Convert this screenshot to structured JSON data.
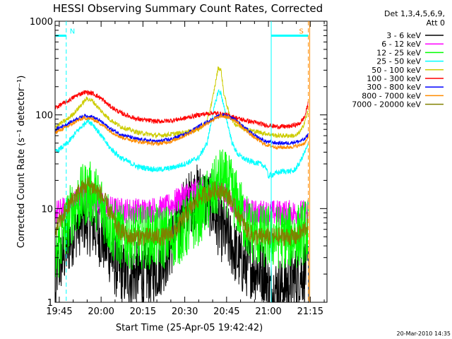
{
  "chart_data": {
    "type": "line",
    "title": "HESSI Observing Summary Count Rates, Corrected",
    "xlabel": "Start Time (25-Apr-05 19:42:42)",
    "ylabel": "Corrected Count Rate (s⁻¹ detector⁻¹)",
    "y_scale": "log",
    "ylim": [
      1,
      1000
    ],
    "xlim_minutes": [
      -1.5,
      96
    ],
    "x_ticks": [
      {
        "label": "19:45",
        "min": 0
      },
      {
        "label": "20:00",
        "min": 15
      },
      {
        "label": "20:15",
        "min": 30
      },
      {
        "label": "20:30",
        "min": 45
      },
      {
        "label": "20:45",
        "min": 60
      },
      {
        "label": "21:00",
        "min": 75
      },
      {
        "label": "21:15",
        "min": 90
      }
    ],
    "y_ticks": [
      {
        "label": "1",
        "value": 1
      },
      {
        "label": "10",
        "value": 10
      },
      {
        "label": "100",
        "value": 100
      },
      {
        "label": "1000",
        "value": 1000
      }
    ],
    "legend": {
      "placement": "right",
      "header": [
        "Det 1,3,4,5,6,9,",
        "Att 0"
      ]
    },
    "series": [
      {
        "name": "3 - 6 keV",
        "color": "#000000",
        "noise": 0.35,
        "points": [
          [
            -1.3,
            1
          ],
          [
            -1,
            2.2
          ],
          [
            0,
            2.5
          ],
          [
            3,
            4
          ],
          [
            6,
            6.5
          ],
          [
            9,
            7.5
          ],
          [
            12,
            6.5
          ],
          [
            15,
            5
          ],
          [
            18,
            3.5
          ],
          [
            20,
            2.5
          ],
          [
            23,
            2
          ],
          [
            28,
            2
          ],
          [
            32,
            2
          ],
          [
            35,
            2.3
          ],
          [
            38,
            3
          ],
          [
            40,
            4
          ],
          [
            42,
            6
          ],
          [
            45,
            10
          ],
          [
            48,
            13
          ],
          [
            50,
            14
          ],
          [
            52,
            13
          ],
          [
            54,
            11
          ],
          [
            56,
            8
          ],
          [
            58,
            6
          ],
          [
            60,
            5
          ],
          [
            62,
            4
          ],
          [
            64,
            3
          ],
          [
            66,
            2.5
          ],
          [
            68,
            2.5
          ],
          [
            70,
            2.3
          ],
          [
            72,
            2.2
          ],
          [
            74,
            2.1
          ],
          [
            75,
            1.4
          ],
          [
            76,
            1.3
          ],
          [
            80,
            1.5
          ],
          [
            85,
            1.8
          ],
          [
            88,
            2.2
          ],
          [
            89.3,
            2.5
          ],
          [
            89.5,
            1
          ]
        ]
      },
      {
        "name": "6 - 12 keV",
        "color": "#ff00ff",
        "noise": 0.14,
        "points": [
          [
            -1.3,
            9
          ],
          [
            3,
            10
          ],
          [
            6,
            12
          ],
          [
            9,
            14
          ],
          [
            12,
            13
          ],
          [
            15,
            11
          ],
          [
            18,
            10
          ],
          [
            22,
            9.5
          ],
          [
            30,
            9.5
          ],
          [
            38,
            10
          ],
          [
            42,
            12
          ],
          [
            45,
            14
          ],
          [
            48,
            15
          ],
          [
            50,
            15
          ],
          [
            52,
            15
          ],
          [
            54,
            16
          ],
          [
            56,
            17
          ],
          [
            58,
            16
          ],
          [
            60,
            14
          ],
          [
            62,
            12
          ],
          [
            64,
            10
          ],
          [
            66,
            9.5
          ],
          [
            70,
            9
          ],
          [
            80,
            9
          ],
          [
            89.3,
            9
          ]
        ]
      },
      {
        "name": "12 - 25 keV",
        "color": "#00ff00",
        "noise": 0.35,
        "points": [
          [
            -1.3,
            3
          ],
          [
            2,
            6
          ],
          [
            5,
            10
          ],
          [
            8,
            13
          ],
          [
            10,
            15
          ],
          [
            12,
            14
          ],
          [
            15,
            11
          ],
          [
            17,
            8
          ],
          [
            19,
            6
          ],
          [
            22,
            5
          ],
          [
            28,
            5
          ],
          [
            35,
            5
          ],
          [
            40,
            5
          ],
          [
            45,
            6
          ],
          [
            50,
            9
          ],
          [
            54,
            13
          ],
          [
            57,
            18
          ],
          [
            58,
            21
          ],
          [
            60,
            18
          ],
          [
            62,
            15
          ],
          [
            64,
            11
          ],
          [
            66,
            8
          ],
          [
            68,
            6
          ],
          [
            72,
            5
          ],
          [
            80,
            5
          ],
          [
            85,
            5
          ],
          [
            89.3,
            6
          ]
        ]
      },
      {
        "name": "25 - 50 keV",
        "color": "#00ffff",
        "noise": 0.03,
        "points": [
          [
            -1.3,
            40
          ],
          [
            3,
            50
          ],
          [
            6,
            65
          ],
          [
            9,
            80
          ],
          [
            10,
            88
          ],
          [
            12,
            80
          ],
          [
            15,
            60
          ],
          [
            18,
            45
          ],
          [
            22,
            35
          ],
          [
            28,
            28
          ],
          [
            35,
            26
          ],
          [
            40,
            27
          ],
          [
            45,
            30
          ],
          [
            50,
            35
          ],
          [
            53,
            50
          ],
          [
            55,
            100
          ],
          [
            57,
            180
          ],
          [
            58,
            170
          ],
          [
            60,
            90
          ],
          [
            62,
            50
          ],
          [
            64,
            38
          ],
          [
            67,
            33
          ],
          [
            72,
            30
          ],
          [
            74,
            28
          ],
          [
            75,
            22
          ],
          [
            76,
            23
          ],
          [
            80,
            25
          ],
          [
            84,
            25
          ],
          [
            86,
            30
          ],
          [
            89.3,
            48
          ]
        ]
      },
      {
        "name": "50 - 100 keV",
        "color": "#cccc00",
        "noise": 0.025,
        "points": [
          [
            -1.3,
            75
          ],
          [
            3,
            90
          ],
          [
            6,
            110
          ],
          [
            9,
            140
          ],
          [
            10,
            150
          ],
          [
            12,
            140
          ],
          [
            15,
            110
          ],
          [
            18,
            90
          ],
          [
            22,
            75
          ],
          [
            28,
            65
          ],
          [
            35,
            60
          ],
          [
            40,
            62
          ],
          [
            45,
            65
          ],
          [
            50,
            70
          ],
          [
            53,
            85
          ],
          [
            55,
            150
          ],
          [
            57,
            320
          ],
          [
            58,
            300
          ],
          [
            59,
            170
          ],
          [
            61,
            100
          ],
          [
            63,
            80
          ],
          [
            67,
            70
          ],
          [
            72,
            65
          ],
          [
            78,
            60
          ],
          [
            85,
            60
          ],
          [
            87,
            70
          ],
          [
            89.3,
            110
          ]
        ]
      },
      {
        "name": "100 - 300 keV",
        "color": "#ff0000",
        "noise": 0.025,
        "points": [
          [
            -1.3,
            120
          ],
          [
            3,
            140
          ],
          [
            6,
            160
          ],
          [
            9,
            175
          ],
          [
            12,
            170
          ],
          [
            15,
            150
          ],
          [
            18,
            125
          ],
          [
            22,
            105
          ],
          [
            28,
            90
          ],
          [
            35,
            85
          ],
          [
            40,
            87
          ],
          [
            45,
            92
          ],
          [
            50,
            100
          ],
          [
            55,
            105
          ],
          [
            60,
            100
          ],
          [
            65,
            90
          ],
          [
            70,
            83
          ],
          [
            74,
            78
          ],
          [
            78,
            75
          ],
          [
            82,
            75
          ],
          [
            86,
            80
          ],
          [
            88,
            95
          ],
          [
            89.3,
            135
          ]
        ]
      },
      {
        "name": "300 - 800 keV",
        "color": "#0000ff",
        "noise": 0.02,
        "points": [
          [
            -1.3,
            70
          ],
          [
            3,
            80
          ],
          [
            6,
            90
          ],
          [
            9,
            98
          ],
          [
            12,
            95
          ],
          [
            15,
            85
          ],
          [
            18,
            72
          ],
          [
            22,
            62
          ],
          [
            28,
            55
          ],
          [
            35,
            52
          ],
          [
            40,
            55
          ],
          [
            45,
            62
          ],
          [
            50,
            75
          ],
          [
            55,
            90
          ],
          [
            58,
            100
          ],
          [
            60,
            98
          ],
          [
            63,
            90
          ],
          [
            66,
            75
          ],
          [
            70,
            60
          ],
          [
            74,
            52
          ],
          [
            78,
            50
          ],
          [
            82,
            50
          ],
          [
            86,
            52
          ],
          [
            88,
            55
          ],
          [
            89.3,
            62
          ]
        ]
      },
      {
        "name": "800 - 7000 keV",
        "color": "#ff8c00",
        "noise": 0.02,
        "points": [
          [
            -1.3,
            65
          ],
          [
            3,
            75
          ],
          [
            6,
            85
          ],
          [
            9,
            93
          ],
          [
            12,
            90
          ],
          [
            15,
            80
          ],
          [
            18,
            68
          ],
          [
            22,
            58
          ],
          [
            28,
            52
          ],
          [
            35,
            49
          ],
          [
            40,
            52
          ],
          [
            45,
            60
          ],
          [
            50,
            72
          ],
          [
            55,
            88
          ],
          [
            58,
            97
          ],
          [
            60,
            95
          ],
          [
            63,
            88
          ],
          [
            66,
            72
          ],
          [
            70,
            57
          ],
          [
            74,
            48
          ],
          [
            78,
            45
          ],
          [
            82,
            45
          ],
          [
            86,
            47
          ],
          [
            88,
            50
          ],
          [
            89.3,
            57
          ]
        ]
      },
      {
        "name": "7000 - 20000 keV",
        "color": "#808000",
        "noise": 0.1,
        "points": [
          [
            -1.3,
            6
          ],
          [
            2,
            9
          ],
          [
            5,
            13
          ],
          [
            8,
            16
          ],
          [
            10,
            18
          ],
          [
            12,
            17
          ],
          [
            15,
            14
          ],
          [
            17,
            11
          ],
          [
            19,
            8
          ],
          [
            21,
            6
          ],
          [
            25,
            5
          ],
          [
            30,
            5
          ],
          [
            38,
            5
          ],
          [
            42,
            6
          ],
          [
            46,
            9
          ],
          [
            50,
            13
          ],
          [
            54,
            15
          ],
          [
            57,
            16
          ],
          [
            59,
            15
          ],
          [
            61,
            13
          ],
          [
            63,
            10
          ],
          [
            65,
            8
          ],
          [
            67,
            6
          ],
          [
            70,
            5
          ],
          [
            75,
            5
          ],
          [
            80,
            5
          ],
          [
            85,
            5
          ],
          [
            88,
            6
          ],
          [
            89.3,
            7
          ]
        ]
      }
    ],
    "flag_lines": [
      {
        "label": "N",
        "color": "#00ffff",
        "level": 700,
        "segments": [
          [
            -1.3,
            2.5
          ],
          [
            76,
            89.3
          ]
        ],
        "dashed_at": 2.5,
        "solid_at": 76
      },
      {
        "label": "S",
        "color": "#ff8c00",
        "level": 700,
        "dashed_at": 89.3
      }
    ],
    "footer": "20-Mar-2010 14:35"
  }
}
